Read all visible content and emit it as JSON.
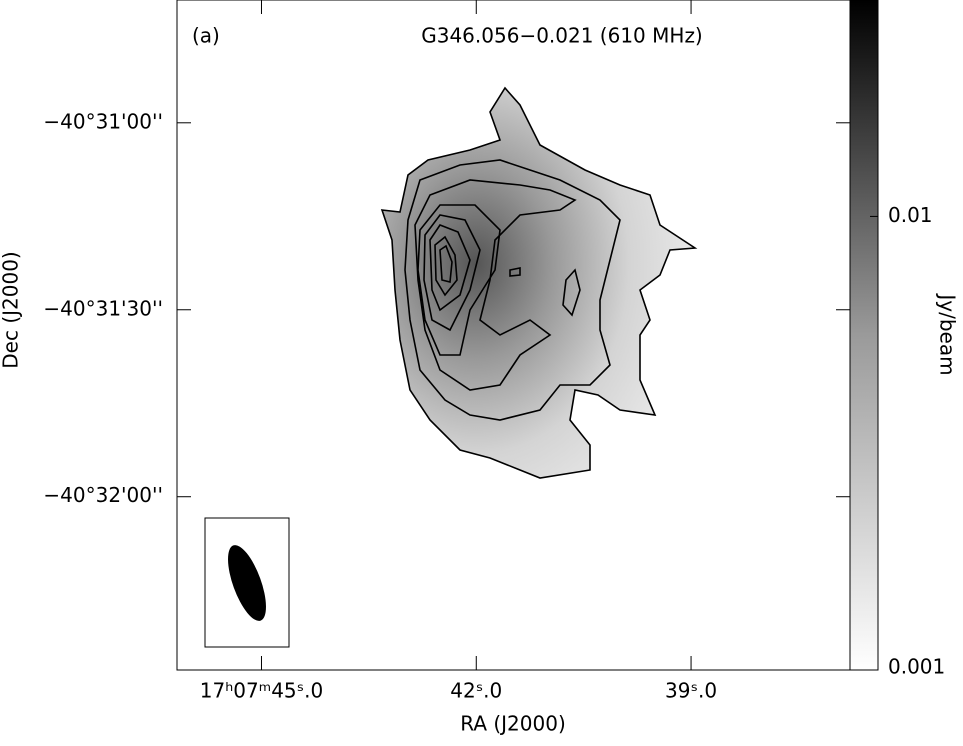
{
  "chart_data": {
    "type": "image",
    "title": "G346.056−0.021 (610 MHz)",
    "panel_label": "(a)",
    "x_label": "RA (J2000)",
    "y_label": "Dec (J2000)",
    "colorbar_label": "Jy/beam",
    "xlim": [
      46.18,
      36.78
    ],
    "xticks": [
      {
        "value": 45.0,
        "label": "17ʰ07ᵐ45ˢ.0"
      },
      {
        "value": 42.0,
        "label": "42ˢ.0"
      },
      {
        "value": 39.0,
        "label": "39ˢ.0"
      }
    ],
    "ylim": [
      -40.541056,
      -40.511194
    ],
    "yticks": [
      {
        "value": -40.516667,
        "label": "−40°31'00''"
      },
      {
        "value": -40.525,
        "label": "−40°31'30''"
      },
      {
        "value": -40.533333,
        "label": "−40°32'00''"
      }
    ],
    "colorbar_lim": [
      0.001,
      0.03
    ],
    "colorbar_ticks": [
      0.01,
      0.001
    ],
    "colorbar_log": true
  }
}
